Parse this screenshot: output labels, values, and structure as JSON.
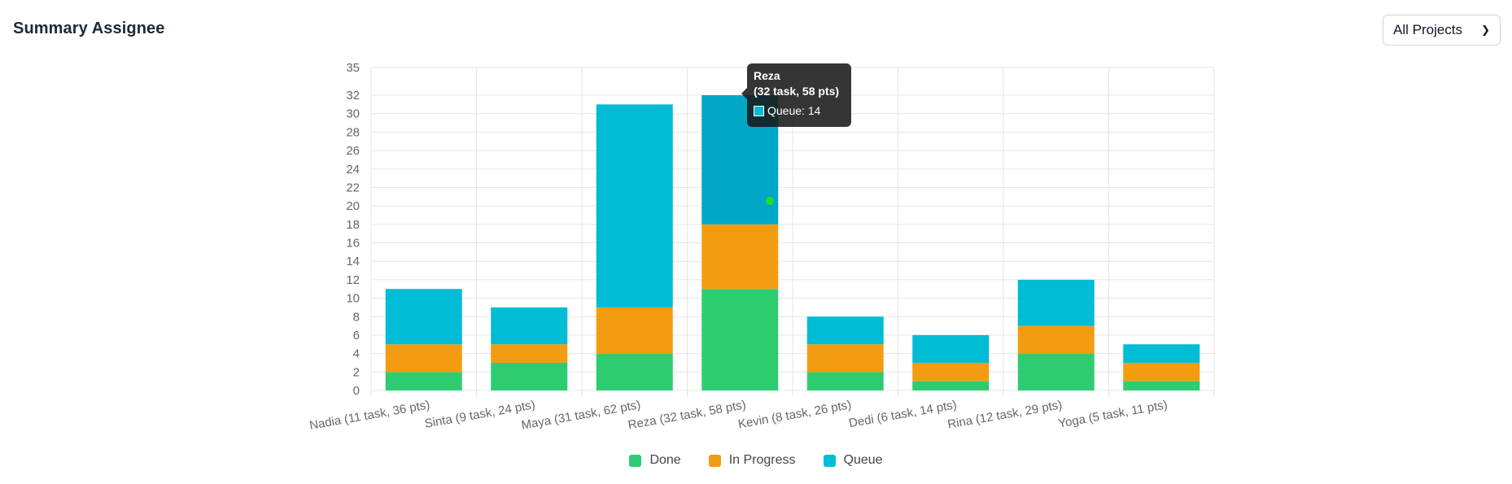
{
  "header": {
    "title": "Summary Assignee",
    "project_filter": {
      "selected": "All Projects",
      "icon": "chevron-down-icon"
    }
  },
  "tooltip": {
    "title_line1": "Reza",
    "title_line2": "(32 task, 58 pts)",
    "row_label": "Queue: 14",
    "swatch_color": "#00bcd4"
  },
  "chart_data": {
    "type": "bar",
    "stacked": true,
    "categories": [
      "Nadia (11 task, 36 pts)",
      "Sinta (9 task, 24 pts)",
      "Maya (31 task, 62 pts)",
      "Reza (32 task, 58 pts)",
      "Kevin (8 task, 26 pts)",
      "Dedi (6 task, 14 pts)",
      "Rina (12 task, 29 pts)",
      "Yoga (5 task, 11 pts)"
    ],
    "series": [
      {
        "name": "Done",
        "color": "#2ecc71",
        "values": [
          2,
          3,
          4,
          11,
          2,
          1,
          4,
          1
        ]
      },
      {
        "name": "In Progress",
        "color": "#f39c12",
        "values": [
          3,
          2,
          5,
          7,
          3,
          2,
          3,
          2
        ]
      },
      {
        "name": "Queue",
        "color": "#00bcd4",
        "hover_color": "#00a8c6",
        "values": [
          6,
          4,
          22,
          14,
          3,
          3,
          5,
          2
        ]
      }
    ],
    "yticks": [
      0,
      2,
      4,
      6,
      8,
      10,
      12,
      14,
      16,
      18,
      20,
      22,
      24,
      26,
      28,
      30,
      32,
      35
    ],
    "ylim": [
      0,
      35
    ],
    "grid": true,
    "legend": "bottom-center",
    "hovered_category": "Reza (32 task, 58 pts)"
  }
}
